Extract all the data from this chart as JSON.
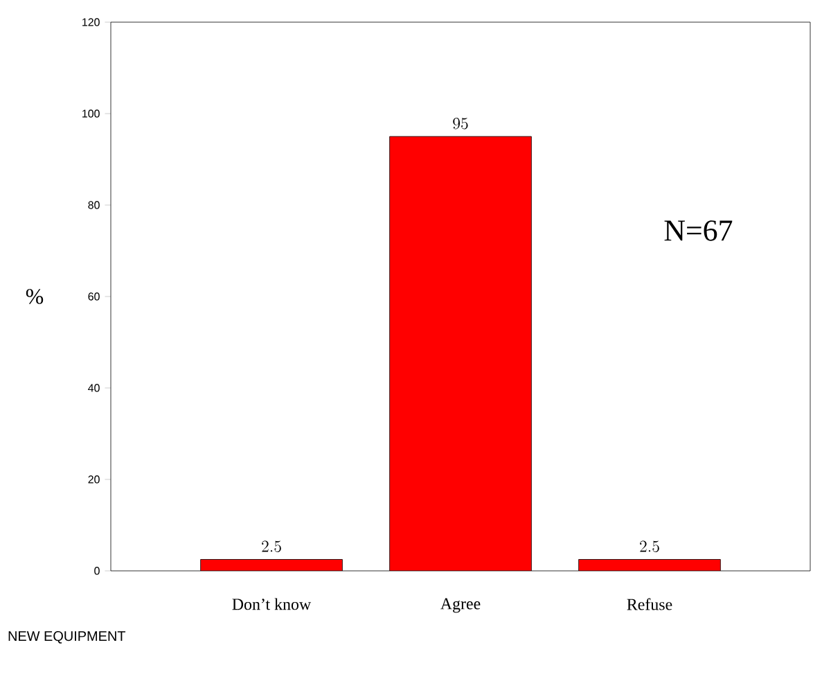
{
  "chart_data": {
    "type": "bar",
    "categories": [
      "Don’t know",
      "Agree",
      "Refuse"
    ],
    "values": [
      2.5,
      95,
      2.5
    ],
    "color": "#ff0000",
    "ylim": [
      0,
      120
    ],
    "yticks": [
      0,
      20,
      40,
      60,
      80,
      100,
      120
    ],
    "ylabel": "%",
    "xlabel": "NEW EQUIPMENT",
    "annotations": [
      "N=67"
    ],
    "data_labels": true,
    "grid": false
  }
}
